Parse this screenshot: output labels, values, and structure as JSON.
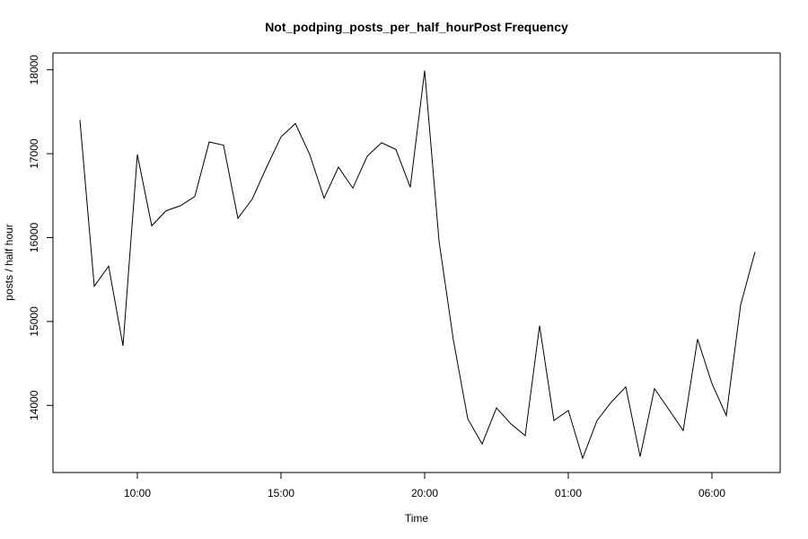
{
  "chart_data": {
    "type": "line",
    "title": "Not_podping_posts_per_half_hourPost Frequency",
    "xlabel": "Time",
    "ylabel": "posts / half hour",
    "x_ticks": [
      "10:00",
      "15:00",
      "20:00",
      "01:00",
      "06:00"
    ],
    "y_ticks": [
      "14000",
      "15000",
      "16000",
      "17000",
      "18000"
    ],
    "ylim": [
      13200,
      18200
    ],
    "grid": false,
    "legend": "none",
    "line_color": "#000000",
    "series": [
      {
        "x": [
          "08:00",
          "08:30",
          "09:00",
          "09:30",
          "10:00",
          "10:30",
          "11:00",
          "11:30",
          "12:00",
          "12:30",
          "13:00",
          "13:30",
          "14:00",
          "14:30",
          "15:00",
          "15:30",
          "16:00",
          "16:30",
          "17:00",
          "17:30",
          "18:00",
          "18:30",
          "19:00",
          "19:30",
          "20:00",
          "20:30",
          "21:00",
          "21:30",
          "22:00",
          "22:30",
          "23:00",
          "23:30",
          "00:00",
          "00:30",
          "01:00",
          "01:30",
          "02:00",
          "02:30",
          "03:00",
          "03:30",
          "04:00",
          "04:30",
          "05:00",
          "05:30",
          "06:00",
          "06:30",
          "07:00",
          "07:30"
        ],
        "values": [
          17400,
          15420,
          15660,
          14710,
          16990,
          16140,
          16320,
          16380,
          16490,
          17140,
          17100,
          16230,
          16460,
          16840,
          17200,
          17360,
          16990,
          16470,
          16840,
          16590,
          16970,
          17130,
          17050,
          16600,
          17990,
          15960,
          14780,
          13840,
          13540,
          13970,
          13780,
          13640,
          14950,
          13820,
          13940,
          13370,
          13820,
          14040,
          14220,
          13390,
          14200,
          13950,
          13700,
          14790,
          14260,
          13880,
          15200,
          15830
        ]
      }
    ]
  }
}
